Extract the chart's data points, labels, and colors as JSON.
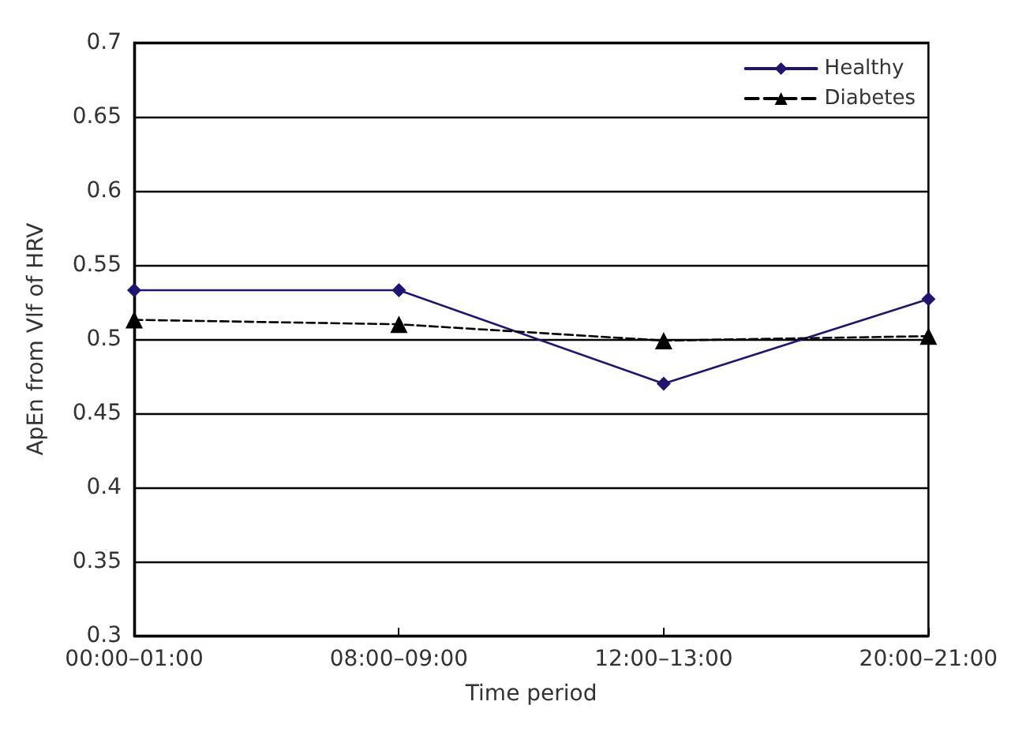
{
  "chart_data": {
    "type": "line",
    "xlabel": "Time period",
    "ylabel": "ApEn from Vlf of HRV",
    "categories": [
      "00:00–01:00",
      "08:00–09:00",
      "12:00–13:00",
      "20:00–21:00"
    ],
    "series": [
      {
        "name": "Healthy",
        "color": "#1f1470",
        "values": [
          0.533,
          0.533,
          0.47,
          0.527
        ],
        "marker": "diamond",
        "line_style": "solid"
      },
      {
        "name": "Diabetes",
        "color": "#000000",
        "values": [
          0.513,
          0.51,
          0.499,
          0.502
        ],
        "marker": "triangle",
        "line_style": "dashed"
      }
    ],
    "ylim": [
      0.3,
      0.7
    ],
    "yticks": [
      0.3,
      0.35,
      0.4,
      0.45,
      0.5,
      0.55,
      0.6,
      0.65,
      0.7
    ],
    "grid": "y",
    "legend": "top right"
  }
}
